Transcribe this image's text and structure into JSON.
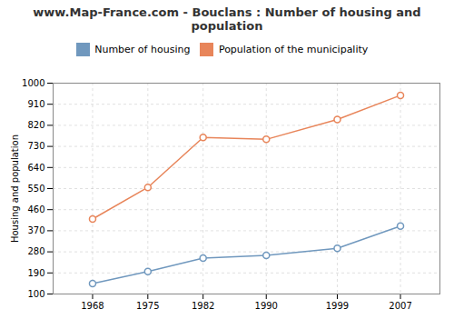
{
  "chart_data": {
    "type": "line",
    "title": "www.Map-France.com - Bouclans : Number of housing and population",
    "ylabel": "Housing and population",
    "x": [
      1968,
      1975,
      1982,
      1990,
      1999,
      2007
    ],
    "series": [
      {
        "name": "Number of housing",
        "color": "#7098be",
        "marker": "circle",
        "line_style": "solid",
        "values": [
          145,
          196,
          253,
          265,
          295,
          390
        ]
      },
      {
        "name": "Population of the municipality",
        "color": "#e8855a",
        "marker": "circle",
        "line_style": "solid",
        "values": [
          420,
          555,
          768,
          760,
          845,
          948
        ]
      }
    ],
    "xlim": [
      1963,
      2012
    ],
    "xticks": [
      1968,
      1975,
      1982,
      1990,
      1999,
      2007
    ],
    "ylim": [
      100,
      1000
    ],
    "yticks": [
      100,
      190,
      280,
      370,
      460,
      550,
      640,
      730,
      820,
      910,
      1000
    ],
    "grid": true,
    "legend": "top"
  }
}
